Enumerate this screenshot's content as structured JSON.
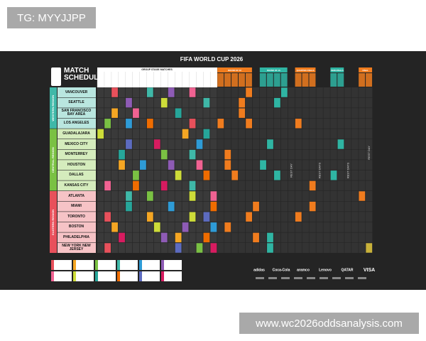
{
  "watermark_top": "TG: MYYJJPP",
  "watermark_bottom": "www.wc2026oddsanalysis.com",
  "poster": {
    "title": "FIFA WORLD CUP 2026",
    "schedule_title": "MATCH SCHEDULE",
    "group_stage_header": "GROUP STAGE MATCHES",
    "knockout_headers": [
      "ROUND OF 32",
      "ROUND OF 16",
      "QUARTER-FINALS",
      "SEMI-FINALS",
      "FINAL"
    ],
    "regions": [
      {
        "name": "WESTERN REGION",
        "cities": [
          "VANCOUVER",
          "SEATTLE",
          "SAN FRANCISCO BAY AREA",
          "LOS ANGELES"
        ]
      },
      {
        "name": "CENTRAL REGION",
        "cities": [
          "GUADALAJARA",
          "MEXICO CITY",
          "MONTERREY",
          "HOUSTON",
          "DALLAS",
          "KANSAS CITY"
        ]
      },
      {
        "name": "EASTERN REGION",
        "cities": [
          "ATLANTA",
          "MIAMI",
          "TORONTO",
          "BOSTON",
          "PHILADELPHIA",
          "NEW YORK NEW JERSEY"
        ]
      }
    ],
    "rest_day_labels": [
      "REST DAY",
      "REST DAYS",
      "REST DAYS",
      "REST DAY"
    ],
    "sponsors": [
      "adidas",
      "Coca-Cola",
      "aramco",
      "Lenovo",
      "QATAR",
      "VISA"
    ]
  }
}
